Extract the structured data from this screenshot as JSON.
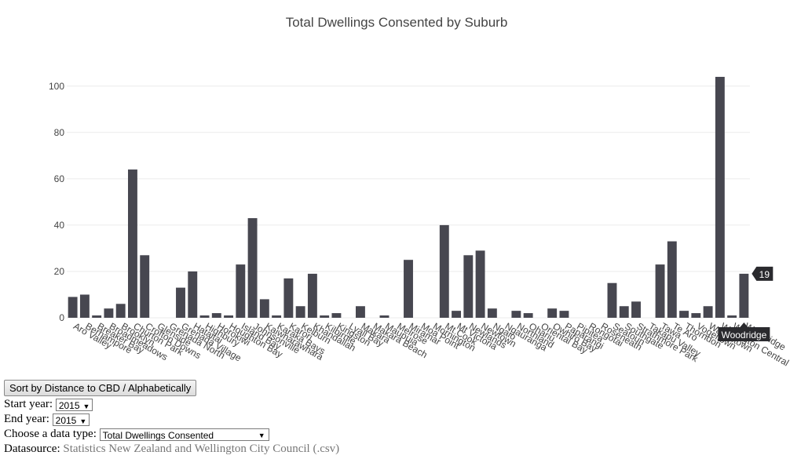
{
  "chart_data": {
    "type": "bar",
    "title": "Total Dwellings Consented by Suburb",
    "ylim": [
      0,
      105
    ],
    "yticks": [
      0,
      20,
      40,
      60,
      80,
      100
    ],
    "categories": [
      "Aro Valley",
      "Berhampore",
      "Breaker Bay",
      "Broadmeadows",
      "Brooklyn",
      "Churton Park",
      "Crofton Downs",
      "Glenside",
      "Grenada North",
      "Grenada Village",
      "Hataitai",
      "Highbury",
      "Horokiwi",
      "Houghton Bay",
      "Island Bay",
      "Johnsonville",
      "Kaiwharawhara",
      "Karaka Bays",
      "Karori",
      "Kelburn",
      "Khandallah",
      "Kilbirnie",
      "Kingston",
      "Lyall Bay",
      "Makara",
      "Makara Beach",
      "Maupuia",
      "Melrose",
      "Miramar",
      "Moa Point",
      "Mornington",
      "Mt Cook",
      "Mt Victoria",
      "Newlands",
      "Newtown",
      "Ngaio",
      "Ngauranga",
      "Northland",
      "Ohariu",
      "Oriental Bay",
      "Owhiro Bay",
      "Paparangi",
      "Pipitea",
      "Rongotai",
      "Roseneath",
      "Seatoun",
      "Southgate",
      "Strathmore Park",
      "Takapu Valley",
      "Tawa",
      "Te Aro",
      "Thorndon",
      "Vogeltown",
      "Wadestown",
      "Wellington Central",
      "Wilton",
      "Woodridge"
    ],
    "values": [
      9,
      10,
      1,
      4,
      6,
      64,
      27,
      0,
      0,
      13,
      20,
      1,
      2,
      1,
      23,
      43,
      8,
      1,
      17,
      5,
      19,
      1,
      2,
      0,
      5,
      0,
      1,
      0,
      25,
      0,
      0,
      40,
      3,
      27,
      29,
      4,
      0,
      3,
      2,
      0,
      4,
      3,
      0,
      0,
      0,
      15,
      5,
      7,
      0,
      23,
      33,
      3,
      2,
      5,
      104,
      1,
      19
    ],
    "bar_color": "#474750",
    "tooltip": {
      "category": "Woodridge",
      "value": "19",
      "color": "#2a2a2e"
    }
  },
  "controls": {
    "sort_button": "Sort by Distance to CBD / Alphabetically",
    "start_label": "Start year:",
    "start_value": "2015",
    "end_label": "End year:",
    "end_value": "2015",
    "type_label": "Choose a data type:",
    "type_value": "Total Dwellings Consented",
    "source_label": "Datasource:",
    "source_text": "Statistics New Zealand and Wellington City Council (.csv)"
  }
}
